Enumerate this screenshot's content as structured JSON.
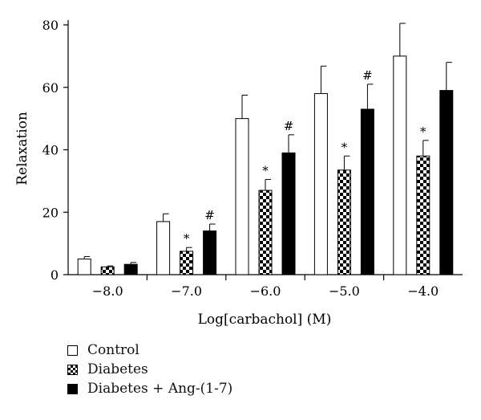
{
  "chart_data": {
    "type": "bar",
    "title": "",
    "xlabel": "Log[carbachol] (M)",
    "ylabel": "Relaxation",
    "ylim": [
      0,
      80
    ],
    "yticks": [
      0,
      20,
      40,
      60,
      80
    ],
    "categories": [
      "−8.0",
      "−7.0",
      "−6.0",
      "−5.0",
      "−4.0"
    ],
    "grid": false,
    "legend_position": "bottom-left",
    "series": [
      {
        "name": "Control",
        "fill": "white",
        "values": [
          5,
          17,
          50,
          58,
          70
        ],
        "errors": [
          0.8,
          2.5,
          7.5,
          8.8,
          10.5
        ],
        "marks": [
          "",
          "",
          "",
          "",
          ""
        ]
      },
      {
        "name": "Diabetes",
        "fill": "checker",
        "values": [
          2.5,
          7.5,
          27,
          33.5,
          38
        ],
        "errors": [
          0.3,
          1.2,
          3.5,
          4.5,
          5
        ],
        "marks": [
          "",
          "*",
          "*",
          "*",
          "*"
        ]
      },
      {
        "name": "Diabetes + Ang-(1-7)",
        "fill": "black",
        "values": [
          3.3,
          14,
          39,
          53,
          59
        ],
        "errors": [
          0.6,
          2.2,
          5.8,
          8,
          9
        ],
        "marks": [
          "",
          "#",
          "#",
          "#",
          ""
        ]
      }
    ]
  }
}
